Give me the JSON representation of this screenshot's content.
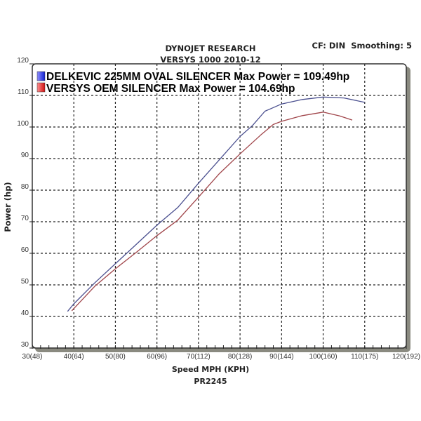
{
  "chart_data": {
    "type": "line",
    "title": "DYNOJET RESEARCH",
    "subtitle": "VERSYS 1000 2010-12",
    "info": "CF: DIN  Smoothing: 5",
    "xlabel": "Speed MPH (KPH)",
    "ylabel": "Power (hp)",
    "footer": "PR2245",
    "xlim": [
      30,
      120
    ],
    "ylim": [
      30,
      120
    ],
    "grid": true,
    "legend_position": "top-left",
    "x_tick_labels": [
      "30(48)",
      "40(64)",
      "50(80)",
      "60(96)",
      "70(112)",
      "80(128)",
      "90(144)",
      "100(160)",
      "110(175)",
      "120(192)"
    ],
    "x_ticks": [
      30,
      40,
      50,
      60,
      70,
      80,
      90,
      100,
      110,
      120
    ],
    "y_ticks": [
      30,
      40,
      50,
      60,
      70,
      80,
      90,
      100,
      110,
      120
    ],
    "y_tick_labels": [
      "30",
      "40",
      "50",
      "60",
      "70",
      "80",
      "90",
      "100",
      "110",
      "120"
    ],
    "series": [
      {
        "name": "DELKEVIC 225MM OVAL SILENCER Max Power = 109.49hp",
        "color": "#4a4f8f",
        "swatch": "#2030e0",
        "x": [
          38.5,
          40,
          45,
          50,
          55,
          60,
          65,
          70,
          75,
          80,
          83,
          86,
          90,
          95,
          100,
          105,
          110
        ],
        "y": [
          41.6,
          44,
          50.6,
          56.7,
          62.8,
          68.9,
          74.5,
          82.2,
          89.6,
          97,
          100.5,
          105,
          107.3,
          108.7,
          109.5,
          109.2,
          107.8
        ]
      },
      {
        "name": "VERSYS OEM SILENCER Max Power = 104.69hp",
        "color": "#a0454a",
        "swatch": "#e02020",
        "x": [
          39.5,
          40,
          45,
          50,
          55,
          60,
          65,
          70,
          75,
          80,
          85,
          88,
          90,
          95,
          100,
          104,
          107
        ],
        "y": [
          41.8,
          42.5,
          49.5,
          55.1,
          60.3,
          65.6,
          70.5,
          77.8,
          85.2,
          91.5,
          97.5,
          100.8,
          101.8,
          103.6,
          104.7,
          103.5,
          102.2
        ]
      }
    ]
  }
}
